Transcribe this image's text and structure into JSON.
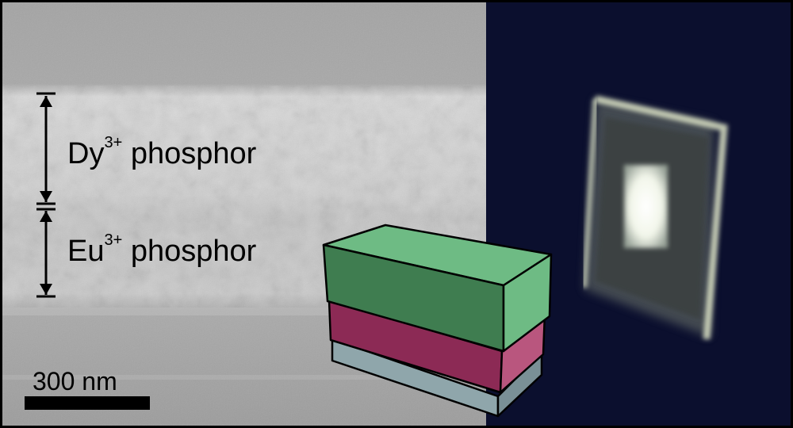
{
  "labels": {
    "dy_element": "Dy",
    "dy_charge": "3+",
    "dy_suffix": " phosphor",
    "eu_element": "Eu",
    "eu_charge": "3+",
    "eu_suffix": " phosphor",
    "scale_bar": "300 nm"
  },
  "colors": {
    "dy_layer": "#5fa670",
    "eu_layer": "#8c2a55",
    "substrate": "#8fa6ab",
    "photo_background": "#0b0f2e"
  }
}
